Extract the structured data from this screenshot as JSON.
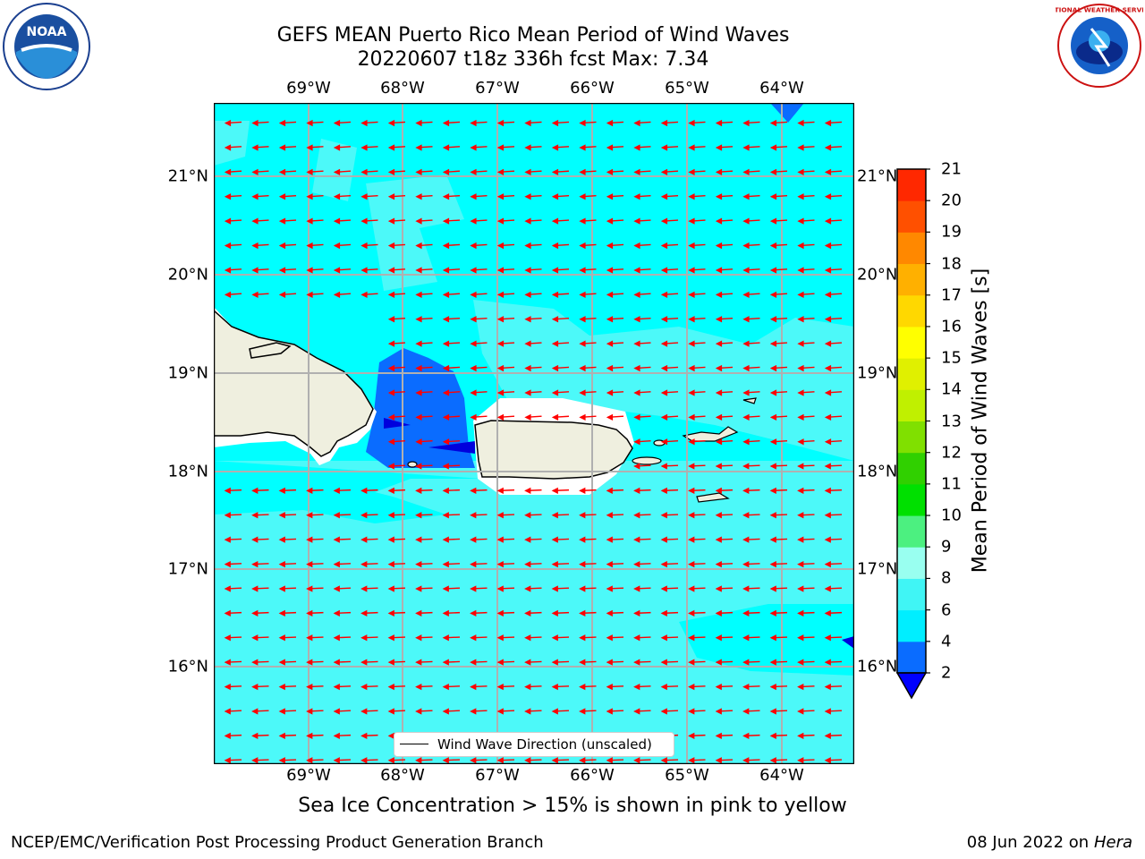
{
  "header": {
    "title_line1": "GEFS MEAN Puerto Rico Mean Period of Wind Waves",
    "title_line2": "20220607 t18z 336h fcst   Max: 7.34"
  },
  "logos": {
    "noaa_text": "NOAA",
    "nws_text": "NATIONAL WEATHER SERVICE"
  },
  "map": {
    "lon_labels": [
      "69°W",
      "68°W",
      "67°W",
      "66°W",
      "65°W",
      "64°W"
    ],
    "lat_labels": [
      "21°N",
      "20°N",
      "19°N",
      "18°N",
      "17°N",
      "16°N"
    ],
    "ocean_color": "#00ffff",
    "secondary_color": "#4cf9f9",
    "land_color": "#efefdf",
    "arrow_color": "#ff0000",
    "legend_label": "Wind Wave Direction (unscaled)"
  },
  "colorbar": {
    "title": "Mean Period of Wind Waves [s]",
    "ticks": [
      "2",
      "4",
      "6",
      "8",
      "9",
      "10",
      "11",
      "12",
      "13",
      "14",
      "15",
      "16",
      "17",
      "18",
      "19",
      "20",
      "21"
    ],
    "colors": [
      "#0a6cff",
      "#00eeff",
      "#40f5f5",
      "#99fff0",
      "#4cf080",
      "#00e000",
      "#30d000",
      "#80e000",
      "#c0f000",
      "#e0f000",
      "#ffff00",
      "#ffd800",
      "#ffb000",
      "#ff8800",
      "#ff5000",
      "#ff2800",
      "#ff0000"
    ],
    "under_color": "#0000ff"
  },
  "footer": {
    "note": "Sea Ice Concentration > 15% is shown in pink to yellow",
    "credit": "NCEP/EMC/Verification Post Processing Product Generation Branch",
    "date": "08 Jun 2022 on",
    "host": "Hera"
  }
}
